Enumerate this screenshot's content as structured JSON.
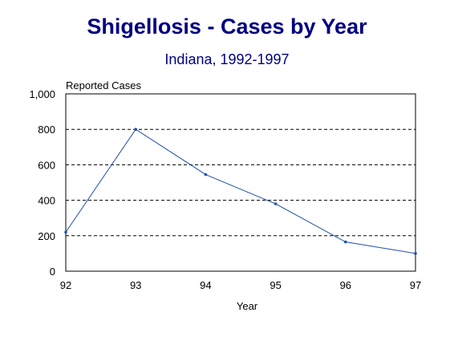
{
  "chart_data": {
    "type": "line",
    "title": "Shigellosis - Cases by Year",
    "subtitle": "Indiana, 1992-1997",
    "xlabel": "Year",
    "ylabel": "Reported Cases",
    "categories": [
      "92",
      "93",
      "94",
      "95",
      "96",
      "97"
    ],
    "series": [
      {
        "values": [
          220,
          800,
          545,
          380,
          165,
          100
        ]
      }
    ],
    "ylim": [
      0,
      1000
    ],
    "yticks": [
      0,
      200,
      400,
      600,
      800,
      1000
    ],
    "ytick_labels": [
      "0",
      "200",
      "400",
      "600",
      "800",
      "1,000"
    ],
    "grid": "horizontal dashed",
    "legend": "none",
    "colors": {
      "title": "#000080",
      "line": "#1f4fa8",
      "grid": "#000000",
      "frame": "#000000"
    }
  }
}
